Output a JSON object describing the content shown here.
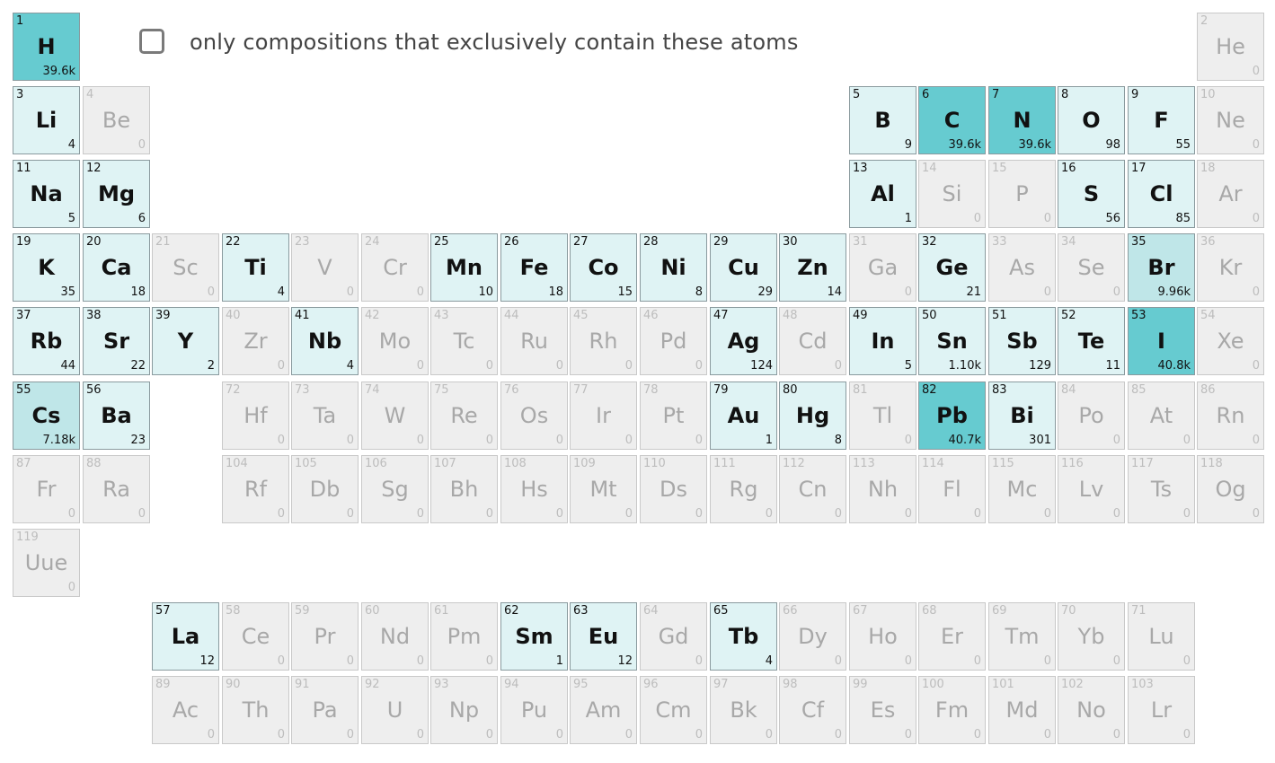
{
  "filter": {
    "checked": false,
    "label": "only compositions that exclusively contain these atoms"
  },
  "colors": {
    "light": "#dff3f4",
    "medium": "#bfe6e8",
    "strong": "#66cbd0",
    "inactive": "#eeeeee"
  },
  "elements": [
    {
      "num": "1",
      "sym": "H",
      "count": "39.6k",
      "level": "strong"
    },
    {
      "num": "2",
      "sym": "He",
      "count": "0",
      "level": "none"
    },
    {
      "num": "3",
      "sym": "Li",
      "count": "4",
      "level": "light"
    },
    {
      "num": "4",
      "sym": "Be",
      "count": "0",
      "level": "none"
    },
    {
      "num": "5",
      "sym": "B",
      "count": "9",
      "level": "light"
    },
    {
      "num": "6",
      "sym": "C",
      "count": "39.6k",
      "level": "strong"
    },
    {
      "num": "7",
      "sym": "N",
      "count": "39.6k",
      "level": "strong"
    },
    {
      "num": "8",
      "sym": "O",
      "count": "98",
      "level": "light"
    },
    {
      "num": "9",
      "sym": "F",
      "count": "55",
      "level": "light"
    },
    {
      "num": "10",
      "sym": "Ne",
      "count": "0",
      "level": "none"
    },
    {
      "num": "11",
      "sym": "Na",
      "count": "5",
      "level": "light"
    },
    {
      "num": "12",
      "sym": "Mg",
      "count": "6",
      "level": "light"
    },
    {
      "num": "13",
      "sym": "Al",
      "count": "1",
      "level": "light"
    },
    {
      "num": "14",
      "sym": "Si",
      "count": "0",
      "level": "none"
    },
    {
      "num": "15",
      "sym": "P",
      "count": "0",
      "level": "none"
    },
    {
      "num": "16",
      "sym": "S",
      "count": "56",
      "level": "light"
    },
    {
      "num": "17",
      "sym": "Cl",
      "count": "85",
      "level": "light"
    },
    {
      "num": "18",
      "sym": "Ar",
      "count": "0",
      "level": "none"
    },
    {
      "num": "19",
      "sym": "K",
      "count": "35",
      "level": "light"
    },
    {
      "num": "20",
      "sym": "Ca",
      "count": "18",
      "level": "light"
    },
    {
      "num": "21",
      "sym": "Sc",
      "count": "0",
      "level": "none"
    },
    {
      "num": "22",
      "sym": "Ti",
      "count": "4",
      "level": "light"
    },
    {
      "num": "23",
      "sym": "V",
      "count": "0",
      "level": "none"
    },
    {
      "num": "24",
      "sym": "Cr",
      "count": "0",
      "level": "none"
    },
    {
      "num": "25",
      "sym": "Mn",
      "count": "10",
      "level": "light"
    },
    {
      "num": "26",
      "sym": "Fe",
      "count": "18",
      "level": "light"
    },
    {
      "num": "27",
      "sym": "Co",
      "count": "15",
      "level": "light"
    },
    {
      "num": "28",
      "sym": "Ni",
      "count": "8",
      "level": "light"
    },
    {
      "num": "29",
      "sym": "Cu",
      "count": "29",
      "level": "light"
    },
    {
      "num": "30",
      "sym": "Zn",
      "count": "14",
      "level": "light"
    },
    {
      "num": "31",
      "sym": "Ga",
      "count": "0",
      "level": "none"
    },
    {
      "num": "32",
      "sym": "Ge",
      "count": "21",
      "level": "light"
    },
    {
      "num": "33",
      "sym": "As",
      "count": "0",
      "level": "none"
    },
    {
      "num": "34",
      "sym": "Se",
      "count": "0",
      "level": "none"
    },
    {
      "num": "35",
      "sym": "Br",
      "count": "9.96k",
      "level": "medium"
    },
    {
      "num": "36",
      "sym": "Kr",
      "count": "0",
      "level": "none"
    },
    {
      "num": "37",
      "sym": "Rb",
      "count": "44",
      "level": "light"
    },
    {
      "num": "38",
      "sym": "Sr",
      "count": "22",
      "level": "light"
    },
    {
      "num": "39",
      "sym": "Y",
      "count": "2",
      "level": "light"
    },
    {
      "num": "40",
      "sym": "Zr",
      "count": "0",
      "level": "none"
    },
    {
      "num": "41",
      "sym": "Nb",
      "count": "4",
      "level": "light"
    },
    {
      "num": "42",
      "sym": "Mo",
      "count": "0",
      "level": "none"
    },
    {
      "num": "43",
      "sym": "Tc",
      "count": "0",
      "level": "none"
    },
    {
      "num": "44",
      "sym": "Ru",
      "count": "0",
      "level": "none"
    },
    {
      "num": "45",
      "sym": "Rh",
      "count": "0",
      "level": "none"
    },
    {
      "num": "46",
      "sym": "Pd",
      "count": "0",
      "level": "none"
    },
    {
      "num": "47",
      "sym": "Ag",
      "count": "124",
      "level": "light"
    },
    {
      "num": "48",
      "sym": "Cd",
      "count": "0",
      "level": "none"
    },
    {
      "num": "49",
      "sym": "In",
      "count": "5",
      "level": "light"
    },
    {
      "num": "50",
      "sym": "Sn",
      "count": "1.10k",
      "level": "light"
    },
    {
      "num": "51",
      "sym": "Sb",
      "count": "129",
      "level": "light"
    },
    {
      "num": "52",
      "sym": "Te",
      "count": "11",
      "level": "light"
    },
    {
      "num": "53",
      "sym": "I",
      "count": "40.8k",
      "level": "strong"
    },
    {
      "num": "54",
      "sym": "Xe",
      "count": "0",
      "level": "none"
    },
    {
      "num": "55",
      "sym": "Cs",
      "count": "7.18k",
      "level": "medium"
    },
    {
      "num": "56",
      "sym": "Ba",
      "count": "23",
      "level": "light"
    },
    {
      "num": "72",
      "sym": "Hf",
      "count": "0",
      "level": "none"
    },
    {
      "num": "73",
      "sym": "Ta",
      "count": "0",
      "level": "none"
    },
    {
      "num": "74",
      "sym": "W",
      "count": "0",
      "level": "none"
    },
    {
      "num": "75",
      "sym": "Re",
      "count": "0",
      "level": "none"
    },
    {
      "num": "76",
      "sym": "Os",
      "count": "0",
      "level": "none"
    },
    {
      "num": "77",
      "sym": "Ir",
      "count": "0",
      "level": "none"
    },
    {
      "num": "78",
      "sym": "Pt",
      "count": "0",
      "level": "none"
    },
    {
      "num": "79",
      "sym": "Au",
      "count": "1",
      "level": "light"
    },
    {
      "num": "80",
      "sym": "Hg",
      "count": "8",
      "level": "light"
    },
    {
      "num": "81",
      "sym": "Tl",
      "count": "0",
      "level": "none"
    },
    {
      "num": "82",
      "sym": "Pb",
      "count": "40.7k",
      "level": "strong"
    },
    {
      "num": "83",
      "sym": "Bi",
      "count": "301",
      "level": "light"
    },
    {
      "num": "84",
      "sym": "Po",
      "count": "0",
      "level": "none"
    },
    {
      "num": "85",
      "sym": "At",
      "count": "0",
      "level": "none"
    },
    {
      "num": "86",
      "sym": "Rn",
      "count": "0",
      "level": "none"
    },
    {
      "num": "87",
      "sym": "Fr",
      "count": "0",
      "level": "none"
    },
    {
      "num": "88",
      "sym": "Ra",
      "count": "0",
      "level": "none"
    },
    {
      "num": "104",
      "sym": "Rf",
      "count": "0",
      "level": "none"
    },
    {
      "num": "105",
      "sym": "Db",
      "count": "0",
      "level": "none"
    },
    {
      "num": "106",
      "sym": "Sg",
      "count": "0",
      "level": "none"
    },
    {
      "num": "107",
      "sym": "Bh",
      "count": "0",
      "level": "none"
    },
    {
      "num": "108",
      "sym": "Hs",
      "count": "0",
      "level": "none"
    },
    {
      "num": "109",
      "sym": "Mt",
      "count": "0",
      "level": "none"
    },
    {
      "num": "110",
      "sym": "Ds",
      "count": "0",
      "level": "none"
    },
    {
      "num": "111",
      "sym": "Rg",
      "count": "0",
      "level": "none"
    },
    {
      "num": "112",
      "sym": "Cn",
      "count": "0",
      "level": "none"
    },
    {
      "num": "113",
      "sym": "Nh",
      "count": "0",
      "level": "none"
    },
    {
      "num": "114",
      "sym": "Fl",
      "count": "0",
      "level": "none"
    },
    {
      "num": "115",
      "sym": "Mc",
      "count": "0",
      "level": "none"
    },
    {
      "num": "116",
      "sym": "Lv",
      "count": "0",
      "level": "none"
    },
    {
      "num": "117",
      "sym": "Ts",
      "count": "0",
      "level": "none"
    },
    {
      "num": "118",
      "sym": "Og",
      "count": "0",
      "level": "none"
    },
    {
      "num": "119",
      "sym": "Uue",
      "count": "0",
      "level": "none"
    },
    {
      "num": "57",
      "sym": "La",
      "count": "12",
      "level": "light"
    },
    {
      "num": "58",
      "sym": "Ce",
      "count": "0",
      "level": "none"
    },
    {
      "num": "59",
      "sym": "Pr",
      "count": "0",
      "level": "none"
    },
    {
      "num": "60",
      "sym": "Nd",
      "count": "0",
      "level": "none"
    },
    {
      "num": "61",
      "sym": "Pm",
      "count": "0",
      "level": "none"
    },
    {
      "num": "62",
      "sym": "Sm",
      "count": "1",
      "level": "light"
    },
    {
      "num": "63",
      "sym": "Eu",
      "count": "12",
      "level": "light"
    },
    {
      "num": "64",
      "sym": "Gd",
      "count": "0",
      "level": "none"
    },
    {
      "num": "65",
      "sym": "Tb",
      "count": "4",
      "level": "light"
    },
    {
      "num": "66",
      "sym": "Dy",
      "count": "0",
      "level": "none"
    },
    {
      "num": "67",
      "sym": "Ho",
      "count": "0",
      "level": "none"
    },
    {
      "num": "68",
      "sym": "Er",
      "count": "0",
      "level": "none"
    },
    {
      "num": "69",
      "sym": "Tm",
      "count": "0",
      "level": "none"
    },
    {
      "num": "70",
      "sym": "Yb",
      "count": "0",
      "level": "none"
    },
    {
      "num": "71",
      "sym": "Lu",
      "count": "0",
      "level": "none"
    },
    {
      "num": "89",
      "sym": "Ac",
      "count": "0",
      "level": "none"
    },
    {
      "num": "90",
      "sym": "Th",
      "count": "0",
      "level": "none"
    },
    {
      "num": "91",
      "sym": "Pa",
      "count": "0",
      "level": "none"
    },
    {
      "num": "92",
      "sym": "U",
      "count": "0",
      "level": "none"
    },
    {
      "num": "93",
      "sym": "Np",
      "count": "0",
      "level": "none"
    },
    {
      "num": "94",
      "sym": "Pu",
      "count": "0",
      "level": "none"
    },
    {
      "num": "95",
      "sym": "Am",
      "count": "0",
      "level": "none"
    },
    {
      "num": "96",
      "sym": "Cm",
      "count": "0",
      "level": "none"
    },
    {
      "num": "97",
      "sym": "Bk",
      "count": "0",
      "level": "none"
    },
    {
      "num": "98",
      "sym": "Cf",
      "count": "0",
      "level": "none"
    },
    {
      "num": "99",
      "sym": "Es",
      "count": "0",
      "level": "none"
    },
    {
      "num": "100",
      "sym": "Fm",
      "count": "0",
      "level": "none"
    },
    {
      "num": "101",
      "sym": "Md",
      "count": "0",
      "level": "none"
    },
    {
      "num": "102",
      "sym": "No",
      "count": "0",
      "level": "none"
    },
    {
      "num": "103",
      "sym": "Lr",
      "count": "0",
      "level": "none"
    }
  ]
}
